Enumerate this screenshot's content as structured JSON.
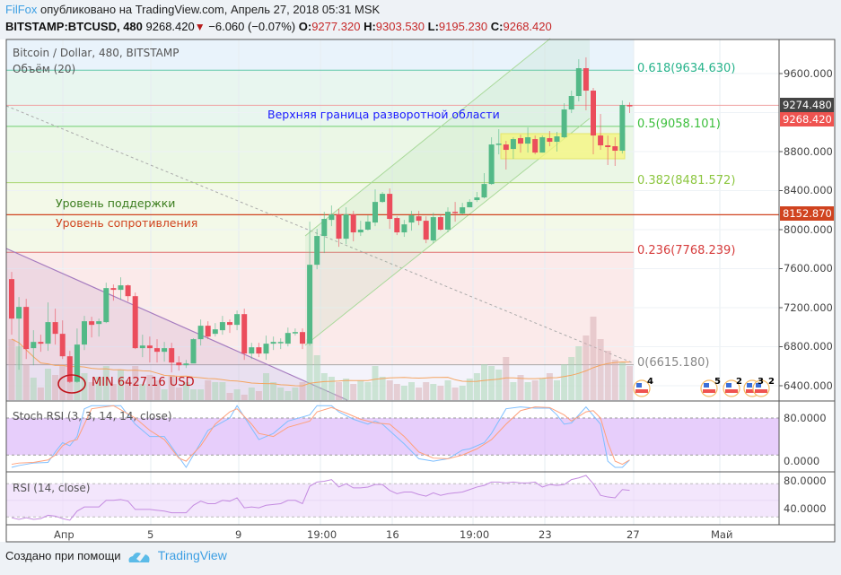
{
  "header": {
    "author": "FilFox",
    "published": " опубликовано на TradingView.com, Апрель 27, 2018 05:31 MSK",
    "symbol": "BITSTAMP:BTCUSD, 480",
    "last": "9268.420",
    "change": "−6.060 (−0.07%)",
    "o_label": "O:",
    "o": "9277.320",
    "h_label": "H:",
    "h": "9303.530",
    "l_label": "L:",
    "l": "9195.230",
    "c_label": "C:",
    "c": "9268.420"
  },
  "panes": {
    "main_title": "Bitcoin / Dollar, 480, BITSTAMP",
    "volume_title": "Объём (20)",
    "stoch_title": "Stoch RSI (3, 3, 14, 14, close)",
    "rsi_title": "RSI (14, close)"
  },
  "annotations": {
    "upper_bound": "Верхняя граница разворотной области",
    "support": "Уровень поддержки",
    "resistance": "Уровень сопротивления",
    "min_label": "MIN 6427.16 USD"
  },
  "fib_levels": [
    {
      "label": "0.618(9634.630)",
      "price": 9634.63,
      "color": "#26b38b"
    },
    {
      "label": "0.5(9058.101)",
      "price": 9058.101,
      "color": "#3cbf3c"
    },
    {
      "label": "0.382(8481.572)",
      "price": 8481.572,
      "color": "#8cc63f"
    },
    {
      "label": "0.236(7768.239)",
      "price": 7768.239,
      "color": "#d63b3b"
    },
    {
      "label": "0(6615.180)",
      "price": 6615.18,
      "color": "#888888"
    }
  ],
  "price_tags": [
    {
      "text": "9274.480",
      "color": "#444444"
    },
    {
      "text": "9268.420",
      "color": "#ef5350"
    },
    {
      "text": "8152.870",
      "color": "#d0431f"
    }
  ],
  "events": [
    "4",
    "5",
    "2",
    "3",
    "2"
  ],
  "footer": {
    "created": "Создано при помощи",
    "brand": "TradingView"
  },
  "colors": {
    "up": "#53b987",
    "down": "#eb4d5c",
    "stoch_k": "#7fbfff",
    "stoch_d": "#ffa07a",
    "rsi": "#c48be0",
    "accent": "#3d9fe3"
  },
  "chart_data": [
    {
      "type": "candlestick",
      "title": "Bitcoin / Dollar, 480, BITSTAMP",
      "y_axis_ticks": [
        "9600.000",
        "8800.000",
        "8400.000",
        "8000.000",
        "7600.000",
        "7200.000",
        "6800.000",
        "6400.000"
      ],
      "x_axis_ticks": [
        "Апр",
        "5",
        "9",
        "19:00",
        "16",
        "19:00",
        "23",
        "27",
        "Май"
      ],
      "resistance_level": 8152.87,
      "price_line": 9274.48,
      "ohlc": [
        [
          7493,
          7567,
          6923,
          7088
        ],
        [
          7088,
          7309,
          6564,
          7208
        ],
        [
          7208,
          7291,
          6674,
          6776
        ],
        [
          6785,
          6969,
          6610,
          6849
        ],
        [
          6849,
          6923,
          6748,
          6831
        ],
        [
          6831,
          7254,
          6757,
          7052
        ],
        [
          7052,
          7190,
          6822,
          6932
        ],
        [
          6932,
          7070,
          6674,
          6702
        ],
        [
          6702,
          6757,
          6427,
          6440
        ],
        [
          6440,
          6987,
          6430,
          6822
        ],
        [
          6822,
          7116,
          6766,
          7061
        ],
        [
          7061,
          7107,
          6895,
          7024
        ],
        [
          7033,
          7088,
          6904,
          7061
        ],
        [
          7052,
          7456,
          7042,
          7401
        ],
        [
          7401,
          7438,
          7272,
          7383
        ],
        [
          7383,
          7512,
          7282,
          7429
        ],
        [
          7429,
          7438,
          7263,
          7318
        ],
        [
          7318,
          7355,
          6776,
          6785
        ],
        [
          6785,
          6923,
          6693,
          6812
        ],
        [
          6812,
          6904,
          6638,
          6785
        ],
        [
          6785,
          6877,
          6638,
          6748
        ],
        [
          6748,
          6849,
          6647,
          6785
        ],
        [
          6785,
          6840,
          6536,
          6638
        ],
        [
          6638,
          6702,
          6555,
          6610
        ],
        [
          6610,
          6665,
          6582,
          6628
        ],
        [
          6628,
          6886,
          6647,
          6877
        ],
        [
          6877,
          7079,
          6812,
          7015
        ],
        [
          7015,
          7061,
          6877,
          6904
        ],
        [
          6932,
          7042,
          6904,
          6978
        ],
        [
          6969,
          7116,
          6923,
          7052
        ],
        [
          7052,
          7079,
          6941,
          7024
        ],
        [
          7024,
          7171,
          6969,
          7134
        ],
        [
          7134,
          7190,
          6665,
          6730
        ],
        [
          6730,
          6840,
          6674,
          6794
        ],
        [
          6794,
          6840,
          6693,
          6730
        ],
        [
          6730,
          6914,
          6665,
          6831
        ],
        [
          6831,
          6904,
          6766,
          6849
        ],
        [
          6840,
          6886,
          6776,
          6849
        ],
        [
          6831,
          6996,
          6803,
          6941
        ],
        [
          6941,
          6987,
          6914,
          6950
        ],
        [
          6950,
          6987,
          6776,
          6831
        ],
        [
          6831,
          8082,
          6812,
          7640
        ],
        [
          7640,
          8008,
          7594,
          7935
        ],
        [
          7935,
          8183,
          7760,
          8110
        ],
        [
          8100,
          8248,
          8036,
          8156
        ],
        [
          8156,
          8211,
          7824,
          7907
        ],
        [
          7907,
          8229,
          7852,
          8156
        ],
        [
          8156,
          8192,
          7880,
          7972
        ],
        [
          7972,
          8091,
          7935,
          8000
        ],
        [
          8000,
          8146,
          7990,
          8082
        ],
        [
          8073,
          8413,
          8036,
          8284
        ],
        [
          8284,
          8386,
          8275,
          8367
        ],
        [
          8367,
          8422,
          8008,
          8110
        ],
        [
          8119,
          8137,
          7944,
          7972
        ],
        [
          7972,
          8100,
          7926,
          8054
        ],
        [
          8073,
          8192,
          7990,
          8146
        ],
        [
          8137,
          8192,
          8045,
          8091
        ],
        [
          8091,
          8137,
          7861,
          7898
        ],
        [
          7889,
          8174,
          7861,
          8128
        ],
        [
          8128,
          8156,
          7990,
          8000
        ],
        [
          8000,
          8229,
          7972,
          8183
        ],
        [
          8183,
          8284,
          8082,
          8174
        ],
        [
          8165,
          8275,
          8156,
          8229
        ],
        [
          8229,
          8312,
          8229,
          8284
        ],
        [
          8303,
          8386,
          8284,
          8330
        ],
        [
          8330,
          8579,
          8321,
          8468
        ],
        [
          8468,
          8947,
          8459,
          8873
        ],
        [
          8873,
          9030,
          8772,
          8882
        ],
        [
          8873,
          8910,
          8616,
          8818
        ],
        [
          8827,
          8947,
          8726,
          8928
        ],
        [
          8938,
          8974,
          8790,
          8882
        ],
        [
          8882,
          9048,
          8790,
          8947
        ],
        [
          8928,
          8965,
          8772,
          8790
        ],
        [
          8790,
          8965,
          8790,
          8947
        ],
        [
          8938,
          9011,
          8855,
          8901
        ],
        [
          8901,
          9002,
          8800,
          8956
        ],
        [
          8947,
          9296,
          8938,
          9232
        ],
        [
          9232,
          9425,
          9195,
          9370
        ],
        [
          9370,
          9747,
          9315,
          9655
        ],
        [
          9655,
          9766,
          9223,
          9425
        ],
        [
          9425,
          9453,
          8772,
          8965
        ],
        [
          8965,
          9186,
          8818,
          8864
        ],
        [
          8864,
          8965,
          8662,
          8846
        ],
        [
          8855,
          8947,
          8653,
          8809
        ],
        [
          8809,
          9324,
          8781,
          9278
        ],
        [
          9277.32,
          9303.53,
          9195.23,
          9268.42
        ]
      ],
      "volume": [
        68,
        60,
        40,
        25,
        14,
        35,
        28,
        40,
        25,
        40,
        30,
        20,
        26,
        38,
        18,
        34,
        22,
        38,
        18,
        28,
        22,
        12,
        28,
        14,
        20,
        12,
        12,
        22,
        20,
        20,
        8,
        12,
        6,
        14,
        10,
        30,
        20,
        14,
        10,
        14,
        20,
        68,
        50,
        30,
        26,
        20,
        24,
        18,
        22,
        20,
        38,
        26,
        22,
        18,
        16,
        20,
        14,
        20,
        18,
        16,
        22,
        14,
        16,
        24,
        30,
        40,
        38,
        34,
        48,
        20,
        28,
        20,
        22,
        24,
        30,
        22,
        40,
        48,
        60,
        72,
        93,
        68,
        55,
        45,
        42,
        38
      ],
      "volume_ma_period": 20
    },
    {
      "type": "line",
      "title": "Stoch RSI (3, 3, 14, 14, close)",
      "y_axis_ticks": [
        "80.0000",
        "0.0000"
      ],
      "bands": [
        20,
        80
      ],
      "series": [
        {
          "name": "K",
          "points": [
            [
              1,
              0
            ],
            [
              2,
              3
            ],
            [
              4,
              7
            ],
            [
              6,
              8
            ],
            [
              7,
              25
            ],
            [
              8,
              40
            ],
            [
              9,
              35
            ],
            [
              10,
              50
            ],
            [
              11,
              95
            ],
            [
              12,
              100
            ],
            [
              16,
              100
            ],
            [
              18,
              70
            ],
            [
              20,
              50
            ],
            [
              22,
              50
            ],
            [
              25,
              0
            ],
            [
              28,
              60
            ],
            [
              31,
              80
            ],
            [
              32,
              100
            ],
            [
              35,
              45
            ],
            [
              37,
              55
            ],
            [
              39,
              75
            ],
            [
              42,
              85
            ],
            [
              43,
              100
            ],
            [
              45,
              100
            ],
            [
              46,
              90
            ],
            [
              48,
              78
            ],
            [
              50,
              70
            ],
            [
              51,
              75
            ],
            [
              52,
              70
            ],
            [
              55,
              38
            ],
            [
              57,
              14
            ],
            [
              59,
              10
            ],
            [
              61,
              14
            ],
            [
              63,
              28
            ],
            [
              64,
              30
            ],
            [
              66,
              40
            ],
            [
              67,
              55
            ],
            [
              69,
              95
            ],
            [
              71,
              98
            ],
            [
              73,
              96
            ],
            [
              75,
              96
            ],
            [
              76,
              85
            ],
            [
              77,
              70
            ],
            [
              78,
              72
            ],
            [
              80,
              98
            ],
            [
              82,
              70
            ],
            [
              83,
              10
            ],
            [
              84,
              0
            ],
            [
              85,
              0
            ],
            [
              86,
              12
            ]
          ]
        },
        {
          "name": "D",
          "points": [
            [
              1,
              5
            ],
            [
              2,
              7
            ],
            [
              4,
              8
            ],
            [
              6,
              12
            ],
            [
              7,
              20
            ],
            [
              8,
              35
            ],
            [
              9,
              42
            ],
            [
              10,
              45
            ],
            [
              11,
              70
            ],
            [
              12,
              95
            ],
            [
              15,
              100
            ],
            [
              18,
              80
            ],
            [
              20,
              60
            ],
            [
              22,
              45
            ],
            [
              24,
              15
            ],
            [
              25,
              10
            ],
            [
              27,
              35
            ],
            [
              29,
              70
            ],
            [
              31,
              90
            ],
            [
              32,
              95
            ],
            [
              34,
              70
            ],
            [
              35,
              55
            ],
            [
              37,
              50
            ],
            [
              39,
              65
            ],
            [
              42,
              75
            ],
            [
              43,
              90
            ],
            [
              45,
              97
            ],
            [
              47,
              88
            ],
            [
              49,
              78
            ],
            [
              51,
              72
            ],
            [
              53,
              70
            ],
            [
              55,
              50
            ],
            [
              57,
              25
            ],
            [
              59,
              15
            ],
            [
              61,
              14
            ],
            [
              63,
              20
            ],
            [
              65,
              30
            ],
            [
              67,
              45
            ],
            [
              69,
              70
            ],
            [
              71,
              92
            ],
            [
              73,
              98
            ],
            [
              75,
              97
            ],
            [
              77,
              85
            ],
            [
              78,
              75
            ],
            [
              80,
              90
            ],
            [
              81,
              92
            ],
            [
              82,
              80
            ],
            [
              83,
              40
            ],
            [
              84,
              10
            ],
            [
              85,
              5
            ],
            [
              86,
              12
            ]
          ]
        }
      ]
    },
    {
      "type": "line",
      "title": "RSI (14, close)",
      "y_axis_ticks": [
        "80.0000",
        "40.0000"
      ],
      "bands": [
        30,
        70
      ],
      "values": [
        29,
        27,
        29,
        27,
        28,
        32,
        31,
        28,
        26,
        37,
        42,
        42,
        42,
        50,
        50,
        51,
        49,
        39,
        39,
        39,
        38,
        37,
        35,
        35,
        35,
        44,
        49,
        46,
        46,
        50,
        49,
        53,
        41,
        42,
        41,
        44,
        45,
        46,
        50,
        50,
        46,
        67,
        72,
        73,
        75,
        66,
        70,
        65,
        65,
        66,
        69,
        69,
        62,
        58,
        60,
        60,
        57,
        55,
        59,
        56,
        58,
        59,
        60,
        63,
        66,
        68,
        72,
        72,
        71,
        72,
        71,
        71,
        72,
        66,
        69,
        68,
        69,
        75,
        77,
        80,
        70,
        56,
        54,
        53,
        63,
        62
      ]
    }
  ]
}
